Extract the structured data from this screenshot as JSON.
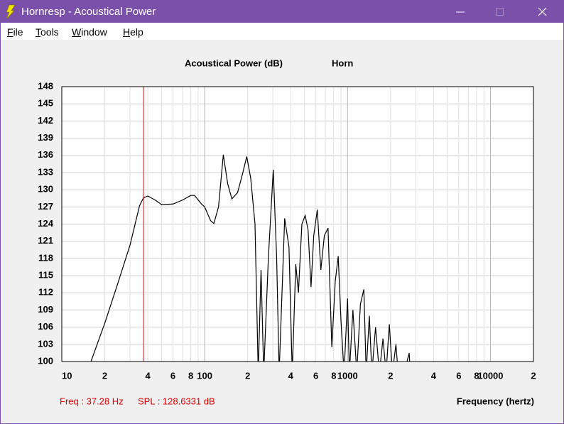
{
  "window": {
    "title": "Hornresp - Acoustical Power"
  },
  "menu": [
    "File",
    "Tools",
    "Window",
    "Help"
  ],
  "status": {
    "freq": "Freq : 37.28 Hz",
    "spl": "SPL : 128.6331 dB"
  },
  "chart_data": {
    "type": "line",
    "title": "Acoustical Power (dB)",
    "subtitle": "Horn",
    "x_label": "Frequency (hertz)",
    "x_scale": "log",
    "grid": true,
    "color": "#000000",
    "xlim": [
      10,
      20000
    ],
    "ylim": [
      100,
      148
    ],
    "xticks": [
      10,
      {
        "value": 20,
        "label": "2"
      },
      {
        "value": 40,
        "label": "4"
      },
      {
        "value": 60,
        "label": "6"
      },
      {
        "value": 80,
        "label": "8"
      },
      100,
      {
        "value": 200,
        "label": "2"
      },
      {
        "value": 400,
        "label": "4"
      },
      {
        "value": 600,
        "label": "6"
      },
      {
        "value": 800,
        "label": "8"
      },
      1000,
      {
        "value": 2000,
        "label": "2"
      },
      {
        "value": 4000,
        "label": "4"
      },
      {
        "value": 6000,
        "label": "6"
      },
      {
        "value": 8000,
        "label": "8"
      },
      10000,
      {
        "value": 20000,
        "label": "2"
      }
    ],
    "x_minor_ticks": [
      30,
      50,
      70,
      90,
      300,
      500,
      700,
      900,
      3000,
      5000,
      7000,
      9000
    ],
    "yticks": [
      100,
      103,
      106,
      109,
      112,
      115,
      118,
      121,
      124,
      127,
      130,
      133,
      136,
      139,
      142,
      145,
      148
    ],
    "cursor": {
      "x": 37.28,
      "color": "#ff0000"
    },
    "x": [
      16,
      20,
      25,
      30,
      35,
      37.3,
      40,
      45,
      50,
      60,
      70,
      80,
      85,
      95,
      100,
      110,
      116,
      125,
      135,
      145,
      155,
      170,
      185,
      197,
      210,
      225,
      237,
      248,
      259,
      279,
      302,
      319,
      332,
      363,
      389,
      410,
      434,
      453,
      479,
      505,
      529,
      555,
      580,
      614,
      650,
      688,
      730,
      776,
      820,
      860,
      900,
      945,
      1000,
      1030,
      1090,
      1160,
      1230,
      1300,
      1350,
      1420,
      1480,
      1570,
      1670,
      1770,
      1860,
      1960,
      2060,
      2180,
      2260,
      2490,
      2700,
      2750
    ],
    "values": [
      100,
      106.7,
      114.1,
      120.3,
      127.2,
      128.6,
      128.9,
      128.2,
      127.4,
      127.5,
      128.2,
      129,
      129,
      127.5,
      127,
      124.6,
      124.1,
      127,
      136.1,
      131,
      128.4,
      129.5,
      133,
      135.8,
      132,
      124,
      98,
      116,
      98,
      118,
      133.5,
      118,
      98,
      125,
      120,
      98,
      117,
      112,
      124,
      125.5,
      123,
      113,
      122,
      126.5,
      116,
      122,
      123.3,
      102.5,
      114,
      118.4,
      107,
      98,
      111,
      98,
      109,
      98,
      110,
      112.6,
      98,
      108,
      98,
      106,
      98,
      104,
      98,
      106.5,
      98,
      103,
      98,
      98,
      101.5,
      98
    ]
  }
}
